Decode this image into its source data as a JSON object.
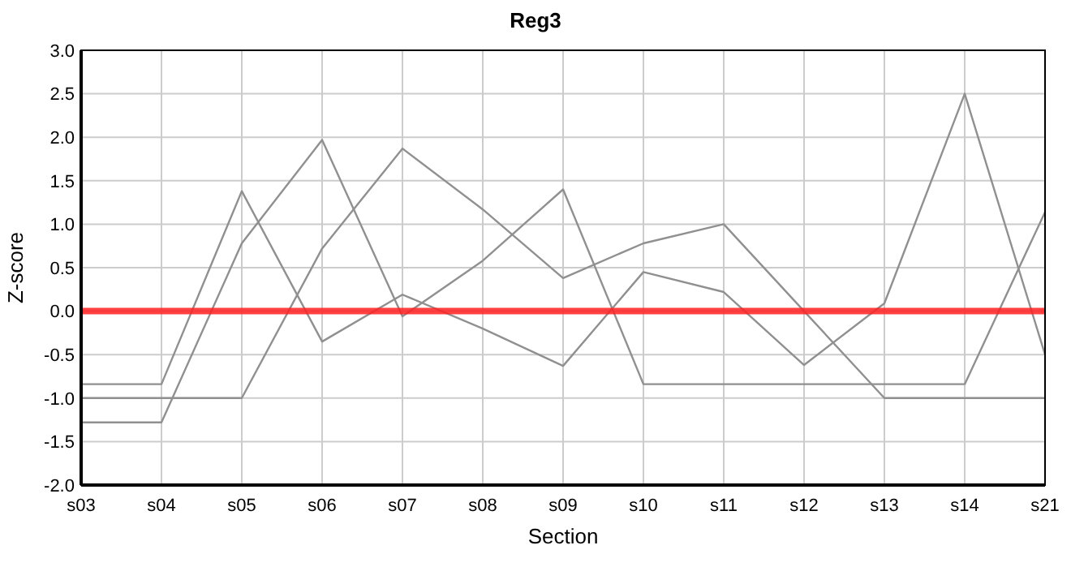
{
  "chart_data": {
    "type": "line",
    "title": "Reg3",
    "xlabel": "Section",
    "ylabel": "Z-score",
    "categories": [
      "s03",
      "s04",
      "s05",
      "s06",
      "s07",
      "s08",
      "s09",
      "s10",
      "s11",
      "s12",
      "s13",
      "s14",
      "s21"
    ],
    "series": [
      {
        "color": "#909090",
        "values": [
          -0.84,
          -0.84,
          1.38,
          -0.35,
          0.19,
          -0.2,
          -0.63,
          0.45,
          0.22,
          -0.62,
          0.09,
          2.5,
          -0.5
        ]
      },
      {
        "color": "#909090",
        "values": [
          -1.0,
          -1.0,
          -1.0,
          0.72,
          1.87,
          1.17,
          0.38,
          0.78,
          1.0,
          0.0,
          -1.0,
          -1.0,
          -1.0
        ]
      },
      {
        "color": "#909090",
        "values": [
          -1.28,
          -1.28,
          0.78,
          1.97,
          -0.06,
          0.58,
          1.4,
          -0.84,
          -0.84,
          -0.84,
          -0.84,
          -0.84,
          1.14
        ]
      }
    ],
    "ylim": [
      -2,
      3
    ],
    "yticks": [
      {
        "value": -2,
        "label": "-2.0"
      },
      {
        "value": -1.5,
        "label": "-1.5"
      },
      {
        "value": -1,
        "label": "-1.0"
      },
      {
        "value": -0.5,
        "label": "-0.5"
      },
      {
        "value": 0,
        "label": "0.0"
      },
      {
        "value": 0.5,
        "label": "0.5"
      },
      {
        "value": 1,
        "label": "1.0"
      },
      {
        "value": 1.5,
        "label": "1.5"
      },
      {
        "value": 2,
        "label": "2.0"
      },
      {
        "value": 2.5,
        "label": "2.5"
      },
      {
        "value": 3,
        "label": "3.0"
      }
    ],
    "grid": true,
    "marker": "none",
    "line_style": "solid",
    "ref_lines": [
      {
        "axis": "y",
        "value": 0,
        "color": "#ff2020"
      }
    ]
  }
}
